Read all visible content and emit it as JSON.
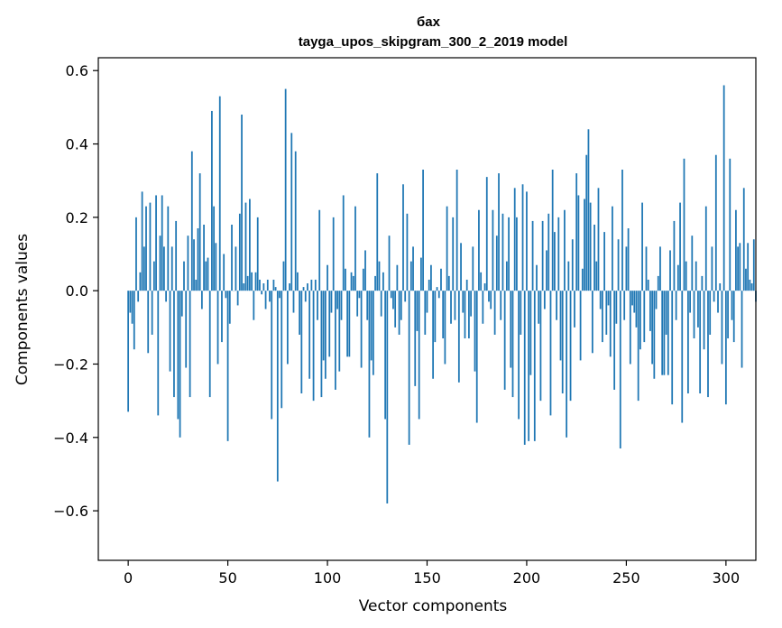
{
  "chart_data": {
    "type": "bar",
    "title_line1": "бах",
    "title_line2": "tayga_upos_skipgram_300_2_2019 model",
    "xlabel": "Vector components",
    "ylabel": "Components values",
    "xlim": [
      -15,
      315
    ],
    "ylim": [
      -0.735,
      0.635
    ],
    "xticks": [
      0,
      50,
      100,
      150,
      200,
      250,
      300
    ],
    "xtick_labels": [
      "0",
      "50",
      "100",
      "150",
      "200",
      "250",
      "300"
    ],
    "yticks": [
      0.6,
      0.4,
      0.2,
      0.0,
      -0.2,
      -0.4,
      -0.6
    ],
    "ytick_labels": [
      "0.6",
      "0.4",
      "0.2",
      "0.0",
      "−0.2",
      "−0.4",
      "−0.6"
    ],
    "bar_color": "#1f77b4",
    "values": [
      -0.33,
      -0.06,
      -0.09,
      -0.16,
      0.2,
      -0.03,
      0.05,
      0.27,
      0.12,
      0.23,
      -0.17,
      0.24,
      -0.12,
      0.08,
      0.26,
      -0.34,
      0.15,
      0.26,
      0.12,
      -0.03,
      0.23,
      -0.22,
      0.12,
      -0.29,
      0.19,
      -0.35,
      -0.4,
      -0.07,
      0.08,
      -0.21,
      0.15,
      -0.29,
      0.38,
      0.14,
      0.03,
      0.17,
      0.32,
      -0.05,
      0.18,
      0.08,
      0.09,
      -0.29,
      0.49,
      0.23,
      0.13,
      -0.2,
      0.53,
      -0.14,
      0.1,
      -0.02,
      -0.41,
      -0.09,
      0.18,
      0.0,
      0.12,
      -0.04,
      0.21,
      0.48,
      0.02,
      0.24,
      0.04,
      0.25,
      0.05,
      -0.08,
      0.05,
      0.2,
      0.03,
      -0.01,
      0.02,
      -0.05,
      0.03,
      -0.03,
      -0.35,
      0.03,
      0.01,
      -0.52,
      -0.02,
      -0.32,
      0.08,
      0.55,
      -0.2,
      0.02,
      0.43,
      -0.06,
      0.38,
      0.05,
      -0.12,
      -0.28,
      0.01,
      -0.03,
      0.02,
      -0.24,
      0.03,
      -0.3,
      0.03,
      -0.08,
      0.22,
      -0.29,
      -0.19,
      -0.24,
      0.07,
      -0.18,
      -0.06,
      0.2,
      -0.27,
      -0.05,
      -0.22,
      -0.08,
      0.26,
      0.06,
      -0.18,
      -0.18,
      0.05,
      0.04,
      0.23,
      -0.07,
      -0.02,
      -0.21,
      0.06,
      0.11,
      -0.08,
      -0.4,
      -0.19,
      -0.23,
      0.04,
      0.32,
      0.08,
      -0.07,
      0.05,
      -0.35,
      -0.58,
      0.15,
      -0.02,
      -0.05,
      -0.1,
      0.07,
      -0.12,
      -0.08,
      0.29,
      -0.03,
      0.21,
      -0.42,
      0.08,
      0.12,
      -0.26,
      -0.11,
      -0.35,
      0.09,
      0.33,
      -0.12,
      -0.06,
      0.03,
      0.07,
      -0.24,
      -0.14,
      0.01,
      -0.02,
      0.06,
      -0.13,
      -0.2,
      0.23,
      0.04,
      -0.09,
      0.2,
      -0.08,
      0.33,
      -0.25,
      0.13,
      -0.06,
      -0.13,
      0.03,
      -0.13,
      -0.07,
      0.12,
      -0.22,
      -0.36,
      0.22,
      0.05,
      -0.09,
      0.02,
      0.31,
      -0.03,
      -0.05,
      0.22,
      -0.12,
      0.15,
      0.32,
      -0.08,
      0.21,
      -0.27,
      0.08,
      0.2,
      -0.21,
      -0.29,
      0.28,
      0.2,
      -0.35,
      -0.12,
      0.29,
      -0.42,
      0.27,
      -0.41,
      -0.23,
      0.19,
      -0.41,
      0.07,
      -0.09,
      -0.3,
      0.19,
      -0.05,
      0.11,
      0.21,
      -0.34,
      0.33,
      0.16,
      -0.08,
      0.2,
      -0.19,
      -0.28,
      0.22,
      -0.4,
      0.08,
      -0.3,
      0.14,
      -0.1,
      0.32,
      0.26,
      -0.19,
      0.06,
      0.25,
      0.37,
      0.44,
      0.24,
      -0.17,
      0.18,
      0.08,
      0.28,
      -0.05,
      -0.14,
      0.16,
      -0.12,
      -0.04,
      -0.18,
      0.23,
      -0.27,
      -0.09,
      0.14,
      -0.43,
      0.33,
      -0.08,
      0.12,
      0.17,
      -0.2,
      -0.04,
      -0.06,
      -0.1,
      -0.3,
      -0.16,
      0.24,
      -0.14,
      0.12,
      0.03,
      -0.11,
      -0.2,
      -0.24,
      -0.05,
      0.04,
      0.12,
      -0.23,
      -0.23,
      -0.12,
      -0.23,
      0.11,
      -0.31,
      0.19,
      -0.08,
      0.07,
      0.24,
      -0.36,
      0.36,
      0.08,
      -0.28,
      -0.06,
      0.15,
      -0.13,
      0.08,
      -0.1,
      -0.28,
      0.04,
      -0.16,
      0.23,
      -0.29,
      -0.12,
      0.12,
      -0.03,
      0.37,
      -0.06,
      0.02,
      -0.2,
      0.56,
      -0.31,
      -0.13,
      0.36,
      -0.08,
      -0.14,
      0.22,
      0.12,
      0.13,
      -0.21,
      0.28,
      0.06,
      0.13,
      0.03,
      0.02,
      0.14,
      -0.03
    ]
  }
}
